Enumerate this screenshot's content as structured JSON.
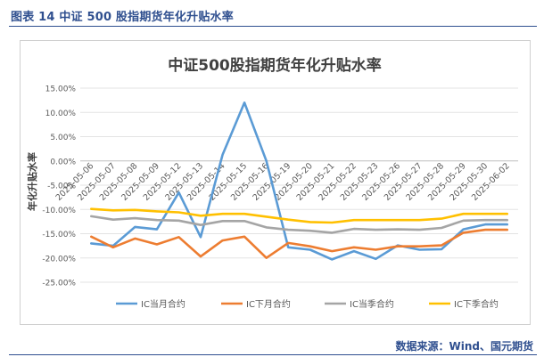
{
  "figure": {
    "caption": "图表 14  中证 500 股指期货年化升贴水率",
    "source": "数据来源：Wind、国元期货"
  },
  "chart_data": {
    "type": "line",
    "title": "中证500股指期货年化升贴水率",
    "ylabel": "年化升贴水率",
    "xlabel": "",
    "ylim": [
      -0.25,
      0.15
    ],
    "yticks": [
      0.15,
      0.1,
      0.05,
      0.0,
      -0.05,
      -0.1,
      -0.15,
      -0.2,
      -0.25
    ],
    "ytick_labels": [
      "15.00%",
      "10.00%",
      "5.00%",
      "0.00%",
      "-5.00%",
      "-10.00%",
      "-15.00%",
      "-20.00%",
      "-25.00%"
    ],
    "grid": true,
    "legend_position": "bottom",
    "categories": [
      "2025-05-06",
      "2025-05-07",
      "2025-05-08",
      "2025-05-09",
      "2025-05-12",
      "2025-05-13",
      "2025-05-14",
      "2025-05-15",
      "2025-05-16",
      "2025-05-19",
      "2025-05-20",
      "2025-05-21",
      "2025-05-22",
      "2025-05-23",
      "2025-05-26",
      "2025-05-27",
      "2025-05-28",
      "2025-05-29",
      "2025-05-30",
      "2025-06-02"
    ],
    "series": [
      {
        "name": "IC当月合约",
        "color": "#5b9bd5",
        "values": [
          -0.17,
          -0.175,
          -0.136,
          -0.141,
          -0.065,
          -0.157,
          0.013,
          0.12,
          0.0,
          -0.178,
          -0.183,
          -0.203,
          -0.186,
          -0.202,
          -0.174,
          -0.183,
          -0.182,
          -0.141,
          -0.131,
          -0.131
        ]
      },
      {
        "name": "IC下月合约",
        "color": "#ed7d31",
        "values": [
          -0.156,
          -0.178,
          -0.16,
          -0.172,
          -0.157,
          -0.197,
          -0.164,
          -0.156,
          -0.2,
          -0.169,
          -0.176,
          -0.186,
          -0.178,
          -0.183,
          -0.176,
          -0.176,
          -0.174,
          -0.148,
          -0.142,
          -0.142
        ]
      },
      {
        "name": "IC当季合约",
        "color": "#a5a5a5",
        "values": [
          -0.114,
          -0.121,
          -0.118,
          -0.122,
          -0.123,
          -0.132,
          -0.124,
          -0.124,
          -0.137,
          -0.142,
          -0.144,
          -0.148,
          -0.14,
          -0.142,
          -0.141,
          -0.142,
          -0.138,
          -0.123,
          -0.122,
          -0.122
        ]
      },
      {
        "name": "IC下季合约",
        "color": "#ffc000",
        "values": [
          -0.099,
          -0.102,
          -0.101,
          -0.104,
          -0.106,
          -0.113,
          -0.109,
          -0.109,
          -0.115,
          -0.121,
          -0.126,
          -0.127,
          -0.122,
          -0.122,
          -0.122,
          -0.122,
          -0.119,
          -0.109,
          -0.109,
          -0.109
        ]
      }
    ]
  }
}
